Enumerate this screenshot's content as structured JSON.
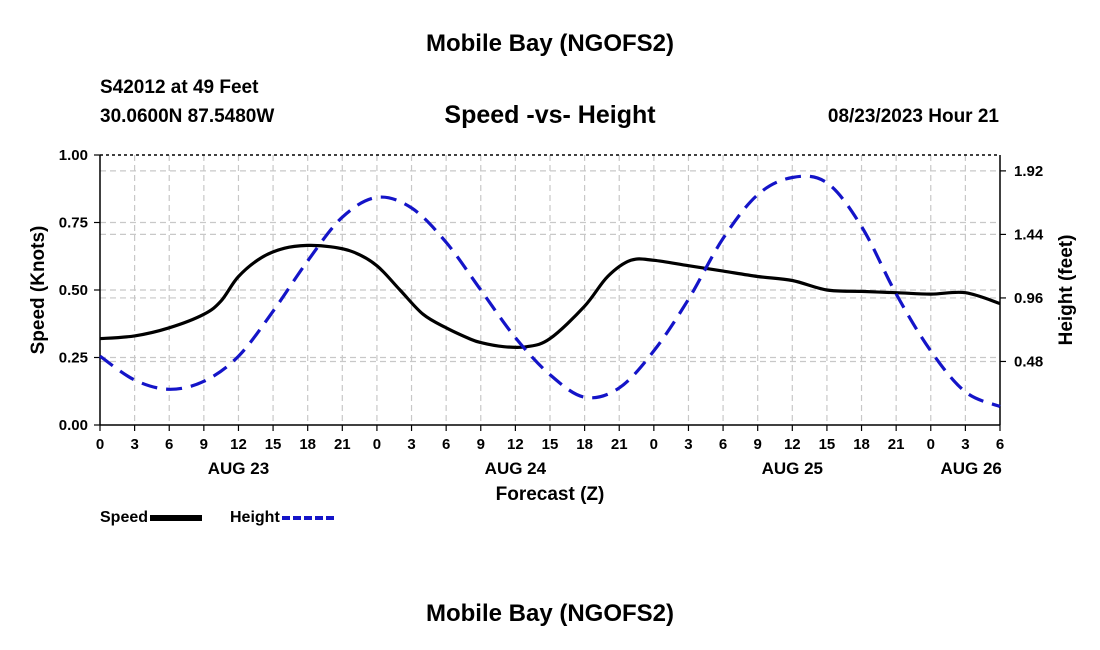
{
  "header": {
    "title": "Mobile Bay (NGOFS2)",
    "station": "S42012 at 49 Feet",
    "coords": "30.0600N  87.5480W",
    "subtitle": "Speed -vs- Height",
    "run_time": "08/23/2023 Hour 21",
    "footer_title": "Mobile Bay (NGOFS2)"
  },
  "legend": [
    {
      "label": "Speed",
      "color": "#000000",
      "style": "solid"
    },
    {
      "label": "Height",
      "color": "#1414c8",
      "style": "dashed"
    }
  ],
  "chart_data": {
    "type": "line",
    "title": "Speed -vs- Height",
    "xlabel": "Forecast (Z)",
    "ylabel": "Speed (Knots)",
    "y2label": "Height (feet)",
    "grid": true,
    "x_hours_offset_range": [
      0,
      78
    ],
    "x_tick_labels": [
      "0",
      "3",
      "6",
      "9",
      "12",
      "15",
      "18",
      "21",
      "0",
      "3",
      "6",
      "9",
      "12",
      "15",
      "18",
      "21",
      "0",
      "3",
      "6",
      "9",
      "12",
      "15",
      "18",
      "21",
      "0",
      "3",
      "6"
    ],
    "day_labels": [
      {
        "label": "AUG 23",
        "x": 12
      },
      {
        "label": "AUG 24",
        "x": 36
      },
      {
        "label": "AUG 25",
        "x": 60
      },
      {
        "label": "AUG 26",
        "x": 75.5
      }
    ],
    "ylim": [
      0,
      1.0
    ],
    "y_ticks": [
      "0.00",
      "0.25",
      "0.50",
      "0.75",
      "1.00"
    ],
    "y2lim": [
      0,
      2.04
    ],
    "y2_ticks": [
      "0.48",
      "0.96",
      "1.44",
      "1.92"
    ],
    "series": [
      {
        "name": "Speed",
        "axis": "left",
        "color": "#000000",
        "x": [
          0,
          3,
          6,
          9,
          10.5,
          12,
          14,
          16,
          18,
          20,
          22,
          24,
          26,
          28,
          30,
          32,
          33,
          35,
          37,
          39,
          42,
          44,
          46,
          48,
          51,
          54,
          57,
          60,
          63,
          66,
          69,
          72,
          75,
          78
        ],
        "y": [
          0.32,
          0.33,
          0.36,
          0.41,
          0.46,
          0.55,
          0.62,
          0.655,
          0.665,
          0.66,
          0.64,
          0.59,
          0.5,
          0.41,
          0.36,
          0.32,
          0.305,
          0.29,
          0.29,
          0.32,
          0.44,
          0.55,
          0.61,
          0.61,
          0.59,
          0.57,
          0.55,
          0.535,
          0.5,
          0.495,
          0.49,
          0.485,
          0.49,
          0.45
        ]
      },
      {
        "name": "Height",
        "axis": "right",
        "color": "#1414c8",
        "x": [
          0,
          3,
          6,
          9,
          12,
          15,
          18,
          21,
          24,
          27,
          30,
          33,
          36,
          39,
          42,
          45,
          48,
          51,
          54,
          57,
          60,
          63,
          66,
          69,
          72,
          75,
          78
        ],
        "y": [
          0.52,
          0.34,
          0.27,
          0.33,
          0.52,
          0.86,
          1.24,
          1.57,
          1.72,
          1.64,
          1.38,
          1.02,
          0.66,
          0.38,
          0.21,
          0.28,
          0.56,
          0.95,
          1.41,
          1.74,
          1.87,
          1.83,
          1.5,
          0.99,
          0.56,
          0.25,
          0.14
        ]
      }
    ]
  }
}
